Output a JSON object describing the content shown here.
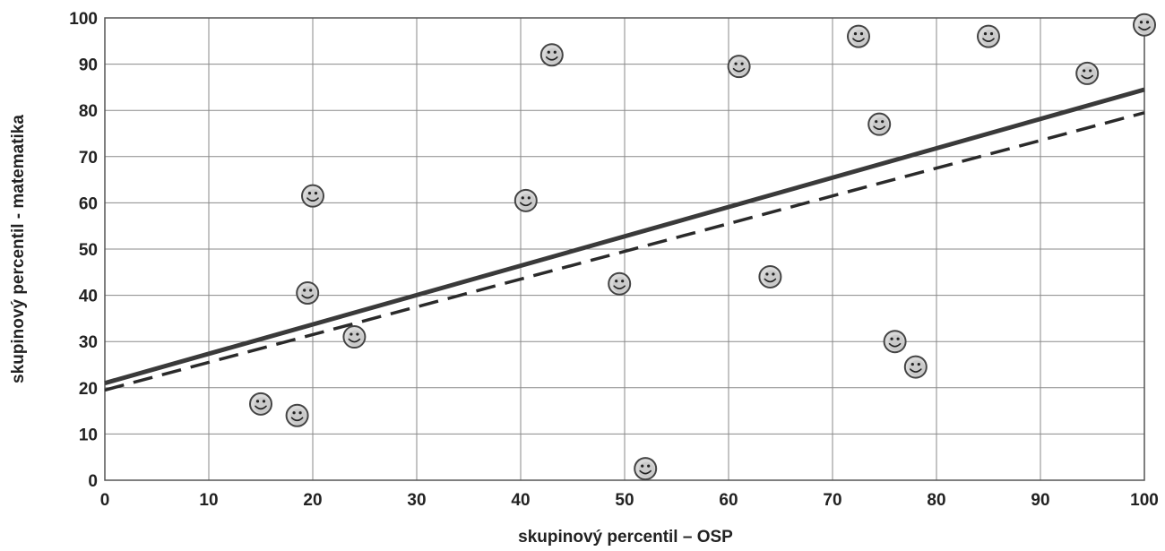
{
  "chart_data": {
    "type": "scatter",
    "xlabel": "skupinový percentil – OSP",
    "ylabel": "skupinový percentil - matematika",
    "xlim": [
      0,
      100
    ],
    "ylim": [
      0,
      100
    ],
    "x_ticks": [
      0,
      10,
      20,
      30,
      40,
      50,
      60,
      70,
      80,
      90,
      100
    ],
    "y_ticks": [
      0,
      10,
      20,
      30,
      40,
      50,
      60,
      70,
      80,
      90,
      100
    ],
    "grid": true,
    "marker": "smiley-face",
    "points": [
      {
        "x": 15,
        "y": 16.5
      },
      {
        "x": 18.5,
        "y": 14
      },
      {
        "x": 19.5,
        "y": 40.5
      },
      {
        "x": 20,
        "y": 61.5
      },
      {
        "x": 24,
        "y": 31
      },
      {
        "x": 40.5,
        "y": 60.5
      },
      {
        "x": 43,
        "y": 92
      },
      {
        "x": 49.5,
        "y": 42.5
      },
      {
        "x": 52,
        "y": 2.5
      },
      {
        "x": 61,
        "y": 89.5
      },
      {
        "x": 64,
        "y": 44
      },
      {
        "x": 72.5,
        "y": 96
      },
      {
        "x": 74.5,
        "y": 77
      },
      {
        "x": 76,
        "y": 30
      },
      {
        "x": 78,
        "y": 24.5
      },
      {
        "x": 85,
        "y": 96
      },
      {
        "x": 94.5,
        "y": 88
      },
      {
        "x": 100,
        "y": 98.5
      }
    ],
    "trendlines": [
      {
        "style": "solid",
        "color": "#3a3a3a",
        "x": [
          0,
          100
        ],
        "y": [
          21,
          84.5
        ]
      },
      {
        "style": "dashed",
        "color": "#2a2a2a",
        "x": [
          0,
          100
        ],
        "y": [
          19.5,
          79.5
        ]
      }
    ]
  }
}
